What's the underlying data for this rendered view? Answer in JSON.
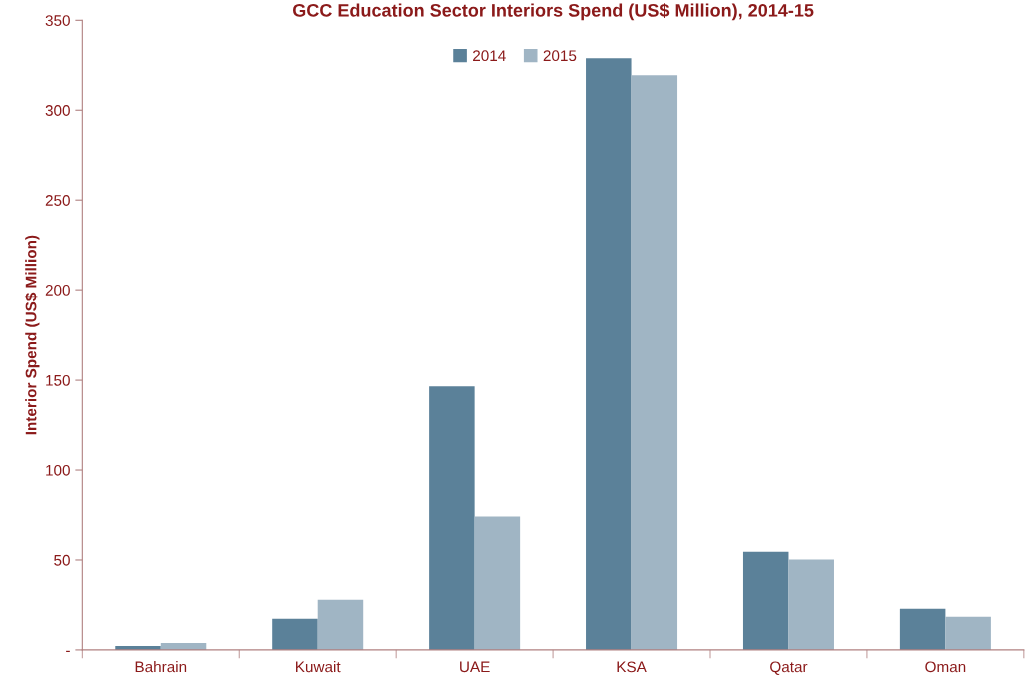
{
  "chart_data": {
    "type": "bar",
    "title": "GCC Education Sector Interiors Spend (US$ Million), 2014-15",
    "ylabel": "Interior Spend (US$ Million)",
    "categories": [
      "Bahrain",
      "Kuwait",
      "UAE",
      "KSA",
      "Qatar",
      "Oman"
    ],
    "series": [
      {
        "name": "2014",
        "color": "#5b8199",
        "values": [
          2.2,
          17.3,
          146.6,
          328.9,
          54.6,
          22.9
        ]
      },
      {
        "name": "2015",
        "color": "#a0b5c4",
        "values": [
          3.9,
          27.9,
          74.1,
          319.4,
          50.2,
          18.4
        ]
      }
    ],
    "ylim": [
      0,
      350
    ],
    "yticks": [
      {
        "value": 0,
        "label": "-"
      },
      50,
      100,
      150,
      200,
      250,
      300,
      350
    ],
    "grid": false,
    "legend": "top"
  }
}
